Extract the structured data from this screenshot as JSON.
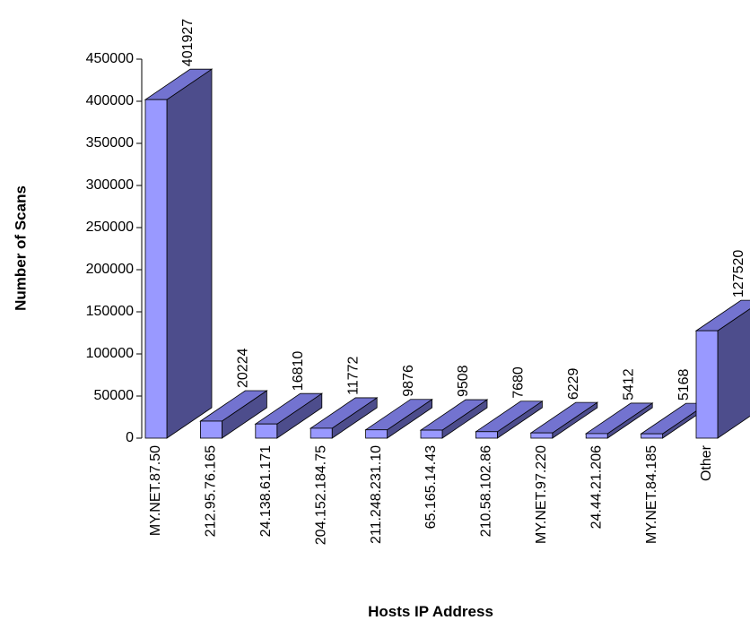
{
  "chart_data": {
    "type": "bar3d",
    "x_label": "Hosts IP Address",
    "y_label": "Number of Scans",
    "categories": [
      "MY.NET.87.50",
      "212.95.76.165",
      "24.138.61.171",
      "204.152.184.75",
      "211.248.231.10",
      "65.165.14.43",
      "210.58.102.86",
      "MY.NET.97.220",
      "24.44.21.206",
      "MY.NET.84.185",
      "Other"
    ],
    "values": [
      401927,
      20224,
      16810,
      11772,
      9876,
      9508,
      7680,
      6229,
      5412,
      5168,
      127520
    ],
    "color": "#9999ff",
    "ylim": [
      0,
      450000
    ],
    "yticks": [
      0,
      50000,
      100000,
      150000,
      200000,
      250000,
      300000,
      350000,
      400000,
      450000
    ],
    "grid": false
  }
}
